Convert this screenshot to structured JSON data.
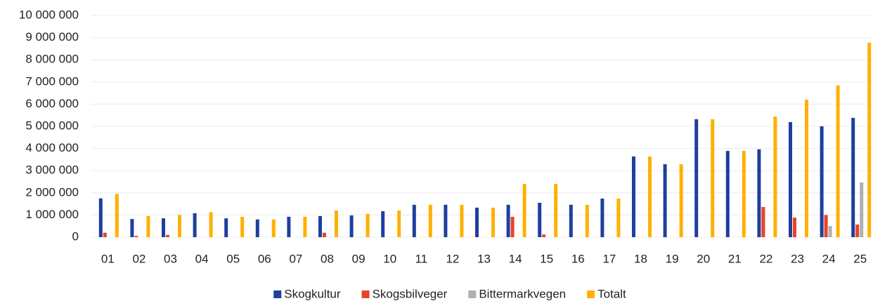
{
  "chart_data": {
    "type": "bar",
    "categories": [
      "01",
      "02",
      "03",
      "04",
      "05",
      "06",
      "07",
      "08",
      "09",
      "10",
      "11",
      "12",
      "13",
      "14",
      "15",
      "16",
      "17",
      "18",
      "19",
      "20",
      "21",
      "22",
      "23",
      "24",
      "25"
    ],
    "series": [
      {
        "name": "Skogkultur",
        "color": "#1f3f9f",
        "values": [
          1750000,
          820000,
          850000,
          1080000,
          850000,
          800000,
          920000,
          950000,
          980000,
          1170000,
          1460000,
          1460000,
          1330000,
          1460000,
          1550000,
          1460000,
          1740000,
          3640000,
          3290000,
          5320000,
          3890000,
          3960000,
          5190000,
          5000000,
          5380000
        ]
      },
      {
        "name": "Skogsbilveger",
        "color": "#e8432a",
        "values": [
          200000,
          60000,
          100000,
          0,
          0,
          0,
          0,
          200000,
          0,
          0,
          0,
          0,
          0,
          920000,
          120000,
          0,
          0,
          0,
          0,
          0,
          0,
          1360000,
          880000,
          1000000,
          570000
        ]
      },
      {
        "name": "Bittermarkvegen",
        "color": "#b0b0b0",
        "values": [
          0,
          0,
          0,
          0,
          0,
          0,
          0,
          0,
          0,
          0,
          0,
          0,
          0,
          0,
          0,
          0,
          0,
          0,
          0,
          0,
          0,
          0,
          0,
          500000,
          2470000
        ]
      },
      {
        "name": "Totalt",
        "color": "#ffb000",
        "values": [
          1950000,
          950000,
          1000000,
          1130000,
          920000,
          800000,
          920000,
          1200000,
          1050000,
          1200000,
          1460000,
          1460000,
          1330000,
          2400000,
          2400000,
          1460000,
          1740000,
          3640000,
          3290000,
          5320000,
          3890000,
          5440000,
          6200000,
          6840000,
          8770000
        ]
      }
    ],
    "ylim": [
      0,
      10000000
    ],
    "yticks": [
      0,
      {
        "value": 1000000,
        "label": "1 000 000"
      },
      {
        "value": 2000000,
        "label": "2 000 000"
      },
      {
        "value": 3000000,
        "label": "3 000 000"
      },
      {
        "value": 4000000,
        "label": "4 000 000"
      },
      {
        "value": 5000000,
        "label": "5 000 000"
      },
      {
        "value": 6000000,
        "label": "6 000 000"
      },
      {
        "value": 7000000,
        "label": "7 000 000"
      },
      {
        "value": 8000000,
        "label": "8 000 000"
      },
      {
        "value": 9000000,
        "label": "9 000 000"
      },
      {
        "value": 10000000,
        "label": "10 000 000"
      }
    ],
    "grid": true,
    "legend": "bottom"
  }
}
